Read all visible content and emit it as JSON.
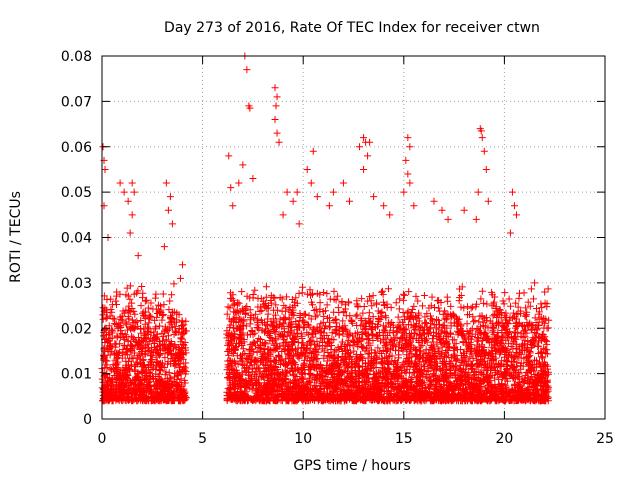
{
  "chart_data": {
    "type": "scatter",
    "title": "Day 273 of 2016, Rate Of TEC Index for receiver ctwn",
    "xlabel": "GPS time / hours",
    "ylabel": "ROTI / TECUs",
    "xlim": [
      0,
      25
    ],
    "ylim": [
      0,
      0.08
    ],
    "xticks": [
      0,
      5,
      10,
      15,
      20,
      25
    ],
    "xtick_labels": [
      "0",
      "5",
      "10",
      "15",
      "20",
      "25"
    ],
    "yticks": [
      0,
      0.01,
      0.02,
      0.03,
      0.04,
      0.05,
      0.06,
      0.07,
      0.08
    ],
    "ytick_labels": [
      "0",
      "0.01",
      "0.02",
      "0.03",
      "0.04",
      "0.05",
      "0.06",
      "0.07",
      "0.08"
    ],
    "grid": true,
    "marker": "+",
    "color": "#ff0000",
    "series": [
      {
        "name": "ROTI",
        "time_ranges": [
          [
            0.0,
            4.2
          ],
          [
            6.2,
            22.2
          ]
        ],
        "baseline_range": [
          0.004,
          0.03
        ],
        "points": [
          [
            0.05,
            0.06
          ],
          [
            0.1,
            0.057
          ],
          [
            0.15,
            0.055
          ],
          [
            0.1,
            0.047
          ],
          [
            0.3,
            0.04
          ],
          [
            0.9,
            0.052
          ],
          [
            1.1,
            0.05
          ],
          [
            1.3,
            0.048
          ],
          [
            1.5,
            0.045
          ],
          [
            1.4,
            0.041
          ],
          [
            1.8,
            0.036
          ],
          [
            1.5,
            0.052
          ],
          [
            1.6,
            0.05
          ],
          [
            3.2,
            0.052
          ],
          [
            3.4,
            0.049
          ],
          [
            3.3,
            0.046
          ],
          [
            3.5,
            0.043
          ],
          [
            3.1,
            0.038
          ],
          [
            3.9,
            0.031
          ],
          [
            4.0,
            0.034
          ],
          [
            6.3,
            0.058
          ],
          [
            6.4,
            0.051
          ],
          [
            6.5,
            0.047
          ],
          [
            6.8,
            0.052
          ],
          [
            7.0,
            0.056
          ],
          [
            7.1,
            0.08
          ],
          [
            7.2,
            0.077
          ],
          [
            7.3,
            0.069
          ],
          [
            7.35,
            0.0685
          ],
          [
            7.5,
            0.053
          ],
          [
            8.6,
            0.073
          ],
          [
            8.7,
            0.071
          ],
          [
            8.65,
            0.069
          ],
          [
            8.6,
            0.066
          ],
          [
            8.7,
            0.063
          ],
          [
            8.8,
            0.061
          ],
          [
            9.2,
            0.05
          ],
          [
            9.5,
            0.048
          ],
          [
            9.0,
            0.045
          ],
          [
            9.8,
            0.043
          ],
          [
            9.7,
            0.05
          ],
          [
            10.5,
            0.059
          ],
          [
            10.4,
            0.052
          ],
          [
            10.7,
            0.049
          ],
          [
            10.2,
            0.055
          ],
          [
            11.5,
            0.05
          ],
          [
            11.3,
            0.047
          ],
          [
            12.0,
            0.052
          ],
          [
            12.3,
            0.048
          ],
          [
            12.8,
            0.06
          ],
          [
            13.0,
            0.062
          ],
          [
            13.1,
            0.061
          ],
          [
            13.2,
            0.058
          ],
          [
            13.3,
            0.061
          ],
          [
            13.0,
            0.055
          ],
          [
            13.5,
            0.049
          ],
          [
            14.0,
            0.047
          ],
          [
            14.3,
            0.045
          ],
          [
            15.2,
            0.062
          ],
          [
            15.3,
            0.06
          ],
          [
            15.1,
            0.057
          ],
          [
            15.2,
            0.054
          ],
          [
            15.3,
            0.052
          ],
          [
            15.0,
            0.05
          ],
          [
            15.5,
            0.047
          ],
          [
            16.5,
            0.048
          ],
          [
            16.9,
            0.046
          ],
          [
            17.2,
            0.044
          ],
          [
            18.0,
            0.046
          ],
          [
            18.6,
            0.044
          ],
          [
            18.8,
            0.064
          ],
          [
            18.85,
            0.0635
          ],
          [
            18.9,
            0.062
          ],
          [
            19.0,
            0.059
          ],
          [
            19.1,
            0.055
          ],
          [
            18.7,
            0.05
          ],
          [
            19.2,
            0.048
          ],
          [
            20.4,
            0.05
          ],
          [
            20.5,
            0.047
          ],
          [
            20.6,
            0.045
          ],
          [
            20.3,
            0.041
          ],
          [
            21.5,
            0.03
          ],
          [
            22.0,
            0.028
          ]
        ]
      }
    ]
  }
}
